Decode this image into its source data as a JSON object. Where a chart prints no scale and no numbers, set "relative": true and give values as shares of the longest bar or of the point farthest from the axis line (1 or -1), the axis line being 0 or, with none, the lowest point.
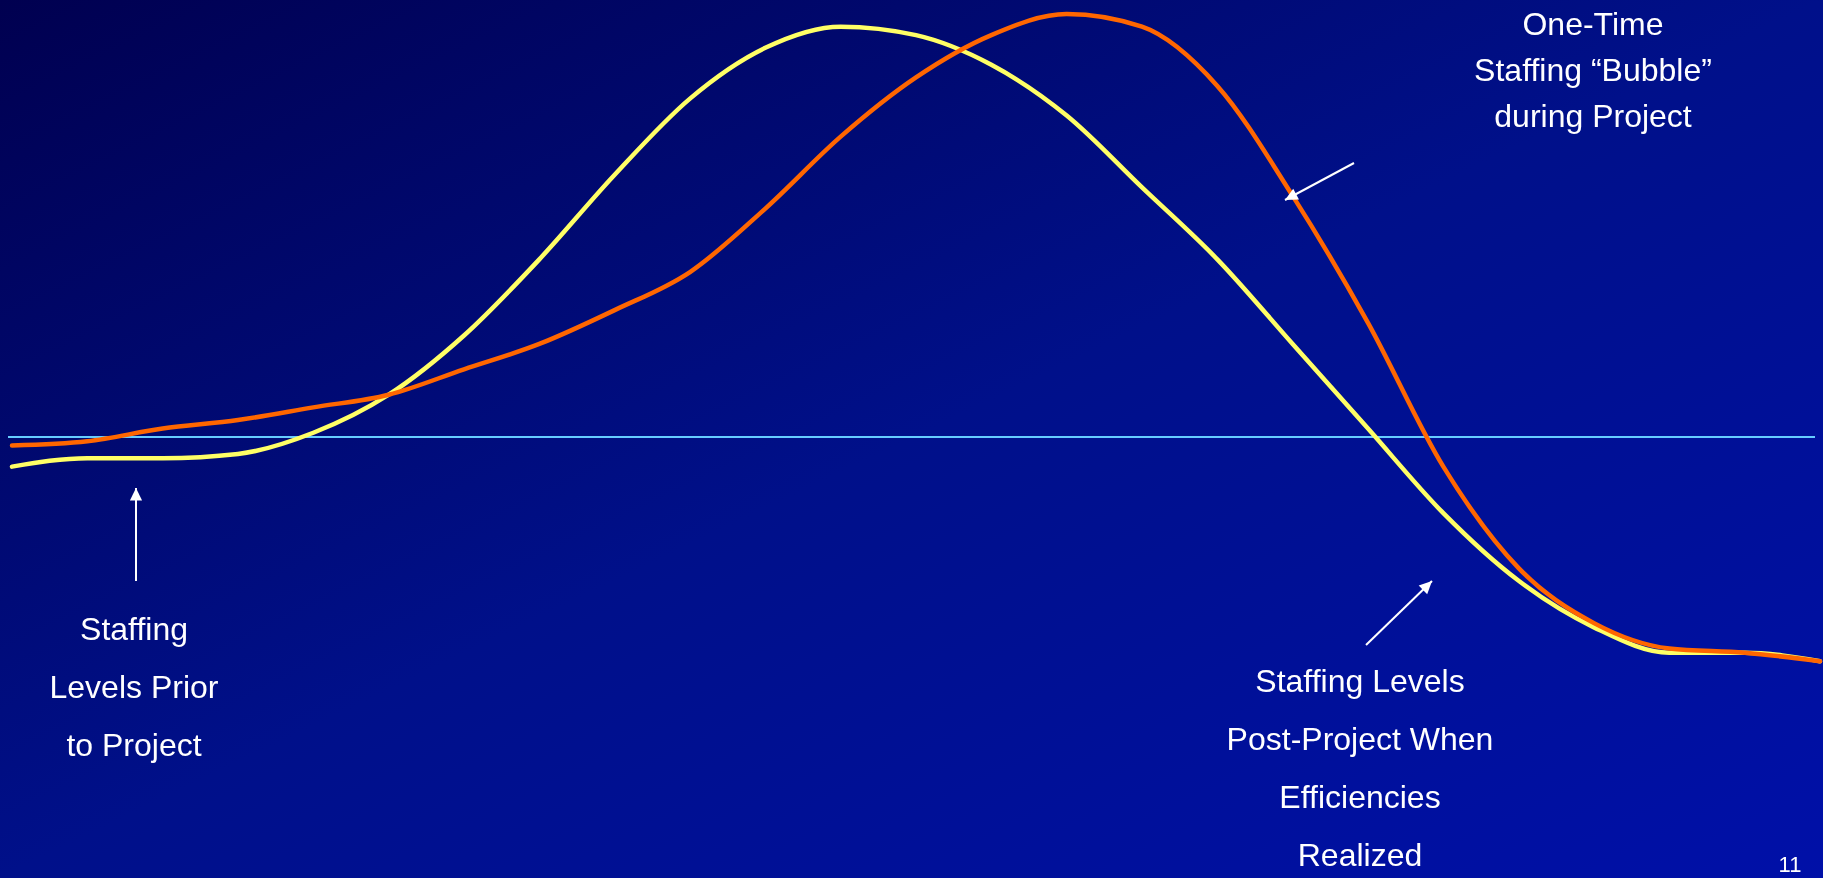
{
  "chart_data": {
    "type": "line",
    "relative": true,
    "categories": [
      null,
      null,
      null,
      null,
      null,
      null,
      null,
      null,
      null,
      null,
      null,
      null,
      null,
      null,
      null,
      null,
      null,
      null,
      null,
      null,
      null,
      null,
      null,
      null,
      null
    ],
    "series": [
      {
        "color": "#ffff66",
        "values": [
          -0.07,
          -0.05,
          -0.05,
          -0.04,
          0.01,
          0.1,
          0.24,
          0.42,
          0.62,
          0.8,
          0.92,
          0.97,
          0.95,
          0.88,
          0.76,
          0.59,
          0.42,
          0.22,
          0.02,
          -0.18,
          -0.34,
          -0.45,
          -0.51,
          -0.51,
          -0.53
        ]
      },
      {
        "color": "#ff6600",
        "values": [
          -0.02,
          -0.01,
          0.02,
          0.04,
          0.07,
          0.1,
          0.16,
          0.22,
          0.3,
          0.39,
          0.54,
          0.71,
          0.85,
          0.95,
          1,
          0.97,
          0.83,
          0.57,
          0.27,
          -0.07,
          -0.31,
          -0.44,
          -0.5,
          -0.51,
          -0.53
        ]
      }
    ],
    "annotations": [
      "One-Time\nStaffing “Bubble”\nduring Project",
      "Staffing\nLevels Prior\nto Project",
      "Staffing Levels\nPost-Project When\nEfficiencies\nRealized",
      "11"
    ],
    "ref_lines": [
      {
        "axis": "y",
        "value": 0,
        "color": "#66ccff"
      }
    ],
    "grid": false,
    "marker": "none",
    "line_style": "solid"
  }
}
